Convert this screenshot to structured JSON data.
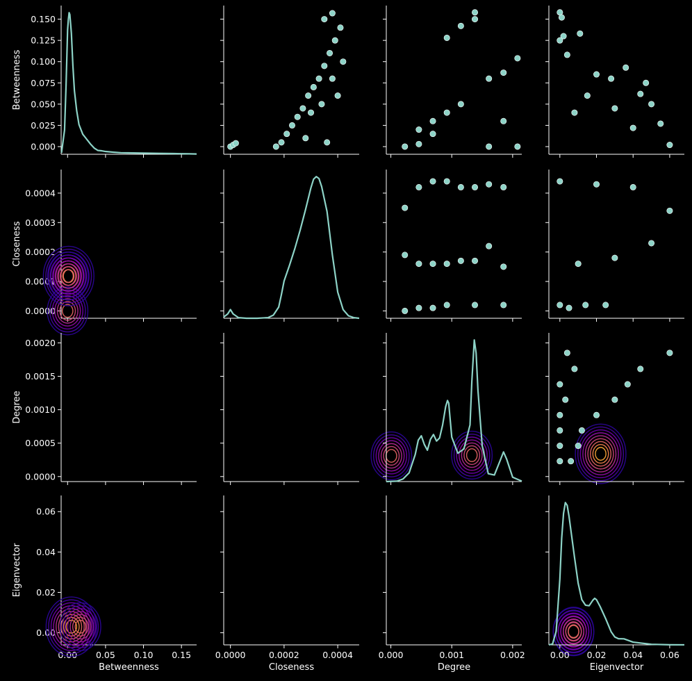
{
  "chart_data": {
    "type": "pairplot",
    "variables": [
      "Betweenness",
      "Closeness",
      "Degree",
      "Eigenvector"
    ],
    "upper_panels": "scatter",
    "diagonal_panels": "kde",
    "lower_panels": "kde-contour",
    "grid": false,
    "colors": {
      "background": "#000000",
      "axes": "#ffffff",
      "kde_line": "#8dd3c7",
      "scatter_fill": "#8dd3c7",
      "scatter_edge": "#ffffff",
      "contour_palette": [
        "#0d0887",
        "#2a0593",
        "#41049d",
        "#6a00a8",
        "#8f0da4",
        "#b12a90",
        "#cc4778",
        "#e16462",
        "#f2844b",
        "#fca636",
        "#fccd25"
      ]
    },
    "axes": {
      "Betweenness": {
        "lim": [
          -0.0085,
          0.17
        ],
        "y_lim": [
          -0.009,
          0.166
        ],
        "x_ticks": [
          0.0,
          0.05,
          0.1,
          0.15
        ],
        "x_tick_labels": [
          "0.00",
          "0.05",
          "0.10",
          "0.15"
        ],
        "y_ticks": [
          0.0,
          0.025,
          0.05,
          0.075,
          0.1,
          0.125,
          0.15
        ],
        "y_tick_labels": [
          "0.000",
          "0.025",
          "0.050",
          "0.075",
          "0.100",
          "0.125",
          "0.150"
        ]
      },
      "Closeness": {
        "lim": [
          -2.5e-05,
          0.00048
        ],
        "x_ticks": [
          0.0,
          0.0002,
          0.0004
        ],
        "x_tick_labels": [
          "0.0000",
          "0.0002",
          "0.0004"
        ],
        "y_ticks": [
          0.0,
          0.0001,
          0.0002,
          0.0003,
          0.0004
        ],
        "y_tick_labels": [
          "0.0000",
          "0.0001",
          "0.0002",
          "0.0003",
          "0.0004"
        ]
      },
      "Degree": {
        "lim": [
          -7.5e-05,
          0.00215
        ],
        "x_ticks": [
          0.0,
          0.001,
          0.002
        ],
        "x_tick_labels": [
          "0.000",
          "0.001",
          "0.002"
        ],
        "y_ticks": [
          0.0,
          0.0005,
          0.001,
          0.0015,
          0.002
        ],
        "y_tick_labels": [
          "0.0000",
          "0.0005",
          "0.0010",
          "0.0015",
          "0.0020"
        ]
      },
      "Eigenvector": {
        "lim": [
          -0.006,
          0.068
        ],
        "x_ticks": [
          0.0,
          0.02,
          0.04,
          0.06
        ],
        "x_tick_labels": [
          "0.00",
          "0.02",
          "0.04",
          "0.06"
        ],
        "y_ticks": [
          0.0,
          0.02,
          0.04,
          0.06
        ],
        "y_tick_labels": [
          "0.00",
          "0.02",
          "0.04",
          "0.06"
        ]
      }
    },
    "kde_curves": {
      "Betweenness": {
        "x": [
          -0.008,
          -0.004,
          -0.002,
          0.0,
          0.001,
          0.002,
          0.003,
          0.005,
          0.007,
          0.009,
          0.012,
          0.015,
          0.02,
          0.025,
          0.03,
          0.035,
          0.04,
          0.045,
          0.05,
          0.06,
          0.07,
          0.08,
          0.1,
          0.12,
          0.14,
          0.16,
          0.17
        ],
        "density": [
          0.2,
          3.5,
          10,
          18,
          19.5,
          20.5,
          20.2,
          17.5,
          12.8,
          9.2,
          6.3,
          4.3,
          2.9,
          2.2,
          1.5,
          0.9,
          0.55,
          0.5,
          0.4,
          0.3,
          0.22,
          0.2,
          0.16,
          0.13,
          0.1,
          0.06,
          0.04
        ]
      },
      "Closeness": {
        "x": [
          -2.5e-05,
          -1e-05,
          0.0,
          1e-05,
          3e-05,
          6e-05,
          0.0001,
          0.00014,
          0.00016,
          0.00018,
          0.00019,
          0.0002,
          0.00022,
          0.00024,
          0.00026,
          0.00028,
          0.0003,
          0.00031,
          0.00032,
          0.00033,
          0.00034,
          0.00036,
          0.00038,
          0.0004,
          0.00042,
          0.00044,
          0.00046,
          0.00048
        ],
        "density": [
          0.02,
          0.07,
          0.14,
          0.07,
          0.01,
          0.0,
          0.0,
          0.01,
          0.05,
          0.18,
          0.38,
          0.6,
          0.85,
          1.12,
          1.42,
          1.75,
          2.1,
          2.24,
          2.28,
          2.25,
          2.12,
          1.72,
          1.02,
          0.42,
          0.14,
          0.04,
          0.01,
          0.0
        ]
      },
      "Degree": {
        "x": [
          -7.5e-05,
          0.0001,
          0.0002,
          0.0003,
          0.0004,
          0.00045,
          0.0005,
          0.00055,
          0.0006,
          0.00065,
          0.0007,
          0.00075,
          0.0008,
          0.00085,
          0.0009,
          0.00093,
          0.00095,
          0.001,
          0.0011,
          0.0012,
          0.0013,
          0.00133,
          0.00137,
          0.0014,
          0.00143,
          0.0015,
          0.0016,
          0.0017,
          0.0018,
          0.00185,
          0.0019,
          0.002,
          0.00215
        ],
        "density": [
          0,
          0.01,
          0.06,
          0.2,
          0.62,
          0.95,
          1.05,
          0.85,
          0.72,
          0.97,
          1.08,
          0.93,
          1.0,
          1.3,
          1.72,
          1.86,
          1.8,
          1.02,
          0.65,
          0.75,
          1.3,
          2.3,
          3.25,
          2.95,
          2.1,
          0.82,
          0.18,
          0.15,
          0.5,
          0.68,
          0.52,
          0.1,
          0.01
        ]
      },
      "Eigenvector": {
        "x": [
          -0.006,
          -0.004,
          -0.002,
          0.0,
          0.001,
          0.002,
          0.003,
          0.004,
          0.005,
          0.006,
          0.008,
          0.01,
          0.012,
          0.014,
          0.016,
          0.018,
          0.019,
          0.02,
          0.022,
          0.025,
          0.028,
          0.03,
          0.032,
          0.035,
          0.04,
          0.05,
          0.06,
          0.068
        ],
        "density": [
          0.02,
          0.3,
          5,
          24,
          39,
          48,
          52,
          51,
          47,
          42,
          32,
          22.5,
          16.5,
          14.5,
          14.3,
          16.3,
          17,
          16.5,
          14,
          9.6,
          4.8,
          2.9,
          2.25,
          2.2,
          1.0,
          0.2,
          0.03,
          0.01
        ]
      }
    },
    "scatter_pairs": {
      "Closeness_Betweenness": [
        [
          0.0,
          0.0
        ],
        [
          1e-05,
          0.002
        ],
        [
          2e-05,
          0.004
        ],
        [
          0.00017,
          0.0
        ],
        [
          0.00019,
          0.005
        ],
        [
          0.00021,
          0.015
        ],
        [
          0.00023,
          0.025
        ],
        [
          0.00025,
          0.035
        ],
        [
          0.00027,
          0.045
        ],
        [
          0.00029,
          0.06
        ],
        [
          0.00031,
          0.07
        ],
        [
          0.00033,
          0.08
        ],
        [
          0.00035,
          0.095
        ],
        [
          0.00037,
          0.11
        ],
        [
          0.00039,
          0.125
        ],
        [
          0.00041,
          0.14
        ],
        [
          0.00035,
          0.15
        ],
        [
          0.00038,
          0.157
        ],
        [
          0.0003,
          0.04
        ],
        [
          0.00034,
          0.05
        ],
        [
          0.00038,
          0.08
        ],
        [
          0.0004,
          0.06
        ],
        [
          0.00042,
          0.1
        ],
        [
          0.00036,
          0.005
        ],
        [
          0.00028,
          0.01
        ]
      ],
      "Degree_Betweenness": [
        [
          0.00023,
          0.0
        ],
        [
          0.00046,
          0.003
        ],
        [
          0.00046,
          0.02
        ],
        [
          0.00069,
          0.015
        ],
        [
          0.00069,
          0.03
        ],
        [
          0.00092,
          0.04
        ],
        [
          0.00092,
          0.128
        ],
        [
          0.00115,
          0.142
        ],
        [
          0.00115,
          0.05
        ],
        [
          0.00138,
          0.158
        ],
        [
          0.00138,
          0.15
        ],
        [
          0.00161,
          0.08
        ],
        [
          0.00161,
          0.0
        ],
        [
          0.00185,
          0.087
        ],
        [
          0.00185,
          0.03
        ],
        [
          0.00208,
          0.104
        ],
        [
          0.00208,
          0.0
        ]
      ],
      "Eigenvector_Betweenness": [
        [
          0.0,
          0.158
        ],
        [
          0.001,
          0.152
        ],
        [
          0.002,
          0.13
        ],
        [
          0.0,
          0.125
        ],
        [
          0.004,
          0.108
        ],
        [
          0.011,
          0.133
        ],
        [
          0.02,
          0.085
        ],
        [
          0.028,
          0.08
        ],
        [
          0.036,
          0.093
        ],
        [
          0.044,
          0.062
        ],
        [
          0.047,
          0.075
        ],
        [
          0.05,
          0.05
        ],
        [
          0.055,
          0.027
        ],
        [
          0.06,
          0.002
        ],
        [
          0.04,
          0.022
        ],
        [
          0.03,
          0.045
        ],
        [
          0.015,
          0.06
        ],
        [
          0.008,
          0.04
        ]
      ],
      "Degree_Closeness": [
        [
          0.00023,
          0.00035
        ],
        [
          0.00023,
          0.00019
        ],
        [
          0.00023,
          0.0
        ],
        [
          0.00046,
          0.00042
        ],
        [
          0.00046,
          0.00016
        ],
        [
          0.00046,
          1e-05
        ],
        [
          0.00069,
          0.00044
        ],
        [
          0.00069,
          0.00016
        ],
        [
          0.00069,
          1e-05
        ],
        [
          0.00092,
          0.00044
        ],
        [
          0.00092,
          0.00016
        ],
        [
          0.00092,
          2e-05
        ],
        [
          0.00115,
          0.00042
        ],
        [
          0.00115,
          0.00017
        ],
        [
          0.00138,
          0.00042
        ],
        [
          0.00138,
          0.00017
        ],
        [
          0.00138,
          2e-05
        ],
        [
          0.00161,
          0.00043
        ],
        [
          0.00161,
          0.00022
        ],
        [
          0.00185,
          0.00042
        ],
        [
          0.00185,
          0.00015
        ],
        [
          0.00185,
          2e-05
        ]
      ],
      "Eigenvector_Closeness": [
        [
          0.0,
          0.00044
        ],
        [
          0.02,
          0.00043
        ],
        [
          0.04,
          0.00042
        ],
        [
          0.06,
          0.00034
        ],
        [
          0.05,
          0.00023
        ],
        [
          0.03,
          0.00018
        ],
        [
          0.01,
          0.00016
        ],
        [
          0.0,
          2e-05
        ],
        [
          0.005,
          1e-05
        ],
        [
          0.014,
          2e-05
        ],
        [
          0.025,
          2e-05
        ]
      ],
      "Eigenvector_Degree": [
        [
          0.004,
          0.00185
        ],
        [
          0.06,
          0.00185
        ],
        [
          0.008,
          0.00161
        ],
        [
          0.044,
          0.00161
        ],
        [
          0.0,
          0.00138
        ],
        [
          0.037,
          0.00138
        ],
        [
          0.003,
          0.00115
        ],
        [
          0.03,
          0.00115
        ],
        [
          0.0,
          0.00092
        ],
        [
          0.02,
          0.00092
        ],
        [
          0.0,
          0.00069
        ],
        [
          0.012,
          0.00069
        ],
        [
          0.0,
          0.00046
        ],
        [
          0.01,
          0.00046
        ],
        [
          0.0,
          0.00023
        ],
        [
          0.006,
          0.00023
        ]
      ]
    },
    "contour_peaks": {
      "Closeness_Betweenness": [
        [
          0.003,
          0.0003
        ],
        [
          0.0,
          0.0
        ]
      ],
      "Degree_Betweenness": [
        [
          0.003,
          0.00138
        ],
        [
          0.003,
          0.00092
        ],
        [
          0.003,
          0.00046
        ]
      ],
      "Eigenvector_Betweenness": [
        [
          0.003,
          0.005
        ],
        [
          0.003,
          0.017
        ]
      ],
      "Degree_Closeness": [
        [
          0.00034,
          0.00138
        ],
        [
          0.00032,
          0.0009
        ],
        [
          0.00031,
          0.0006
        ]
      ],
      "Eigenvector_Closeness": [
        [
          0.00033,
          0.004
        ],
        [
          0.00033,
          0.017
        ]
      ],
      "Eigenvector_Degree": [
        [
          0.00138,
          0.018
        ],
        [
          0.0008,
          0.003
        ],
        [
          0.00047,
          0.003
        ]
      ]
    }
  }
}
